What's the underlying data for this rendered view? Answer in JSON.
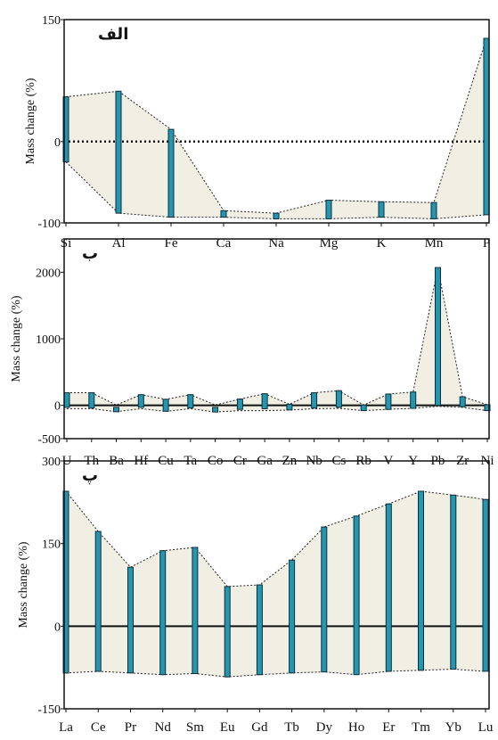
{
  "chart_data": [
    {
      "type": "bar",
      "panel_label": "الف",
      "ylabel": "Mass change (%)",
      "ylim": [
        -100,
        150
      ],
      "yticks": [
        "150",
        "0",
        "-100"
      ],
      "zero_line": "dotted",
      "categories": [
        "Si",
        "Al",
        "Fe",
        "Ca",
        "Na",
        "Mg",
        "K",
        "Mn",
        "P"
      ],
      "range_upper": [
        55,
        62,
        15,
        -85,
        -88,
        -72,
        -74,
        -75,
        127
      ],
      "range_lower": [
        -25,
        -88,
        -93,
        -93,
        -95,
        -95,
        -93,
        -95,
        -90
      ],
      "bar_top": [
        55,
        62,
        15,
        -85,
        -88,
        -72,
        -74,
        -75,
        127
      ],
      "bar_bottom": [
        -25,
        -88,
        -93,
        -93,
        -95,
        -95,
        -93,
        -95,
        -90
      ],
      "colors": {
        "bar": "#2496b0",
        "envelope": "#f1efe3"
      }
    },
    {
      "type": "bar",
      "panel_label": "ب",
      "ylabel": "Mass change (%)",
      "ylim": [
        -500,
        2500
      ],
      "yticks": [
        "2000",
        "1000",
        "0",
        "-500"
      ],
      "zero_line": "solid",
      "categories": [
        "U",
        "Th",
        "Ba",
        "Hf",
        "Cu",
        "Ta",
        "Co",
        "Cr",
        "Ga",
        "Zn",
        "Nb",
        "Cs",
        "Rb",
        "V",
        "Y",
        "Pb",
        "Zr",
        "Ni"
      ],
      "range_upper": [
        190,
        190,
        5,
        160,
        90,
        160,
        5,
        95,
        175,
        15,
        190,
        220,
        5,
        170,
        200,
        2070,
        130,
        10
      ],
      "range_lower": [
        -50,
        -50,
        -95,
        -50,
        -90,
        -50,
        -100,
        -80,
        -80,
        -70,
        -50,
        -45,
        -80,
        -60,
        -45,
        -15,
        -30,
        -80
      ],
      "bar_top": [
        190,
        190,
        -30,
        160,
        90,
        160,
        -30,
        95,
        175,
        15,
        190,
        220,
        5,
        170,
        200,
        2070,
        130,
        10
      ],
      "bar_bottom": [
        -30,
        -40,
        -95,
        -30,
        -90,
        -40,
        -100,
        -60,
        -50,
        -70,
        -40,
        -30,
        -80,
        -60,
        -45,
        0,
        -20,
        -80
      ],
      "colors": {
        "bar": "#2496b0",
        "envelope": "#f1efe3"
      }
    },
    {
      "type": "bar",
      "panel_label": "پ",
      "ylabel": "Mass change (%)",
      "ylim": [
        -150,
        300
      ],
      "yticks": [
        "300",
        "150",
        "0",
        "-150"
      ],
      "zero_line": "solid",
      "categories": [
        "La",
        "Ce",
        "Pr",
        "Nd",
        "Sm",
        "Eu",
        "Gd",
        "Tb",
        "Dy",
        "Ho",
        "Er",
        "Tm",
        "Yb",
        "Lu"
      ],
      "range_upper": [
        245,
        172,
        107,
        137,
        143,
        72,
        75,
        120,
        180,
        200,
        222,
        245,
        238,
        230
      ],
      "range_lower": [
        -85,
        -82,
        -85,
        -88,
        -86,
        -92,
        -88,
        -85,
        -83,
        -88,
        -82,
        -80,
        -78,
        -82
      ],
      "bar_top": [
        245,
        172,
        107,
        137,
        143,
        72,
        75,
        120,
        180,
        200,
        222,
        245,
        238,
        230
      ],
      "bar_bottom": [
        -85,
        -82,
        -85,
        -88,
        -86,
        -92,
        -88,
        -85,
        -83,
        -88,
        -82,
        -80,
        -78,
        -82
      ],
      "colors": {
        "bar": "#2496b0",
        "envelope": "#f1efe3"
      }
    }
  ]
}
